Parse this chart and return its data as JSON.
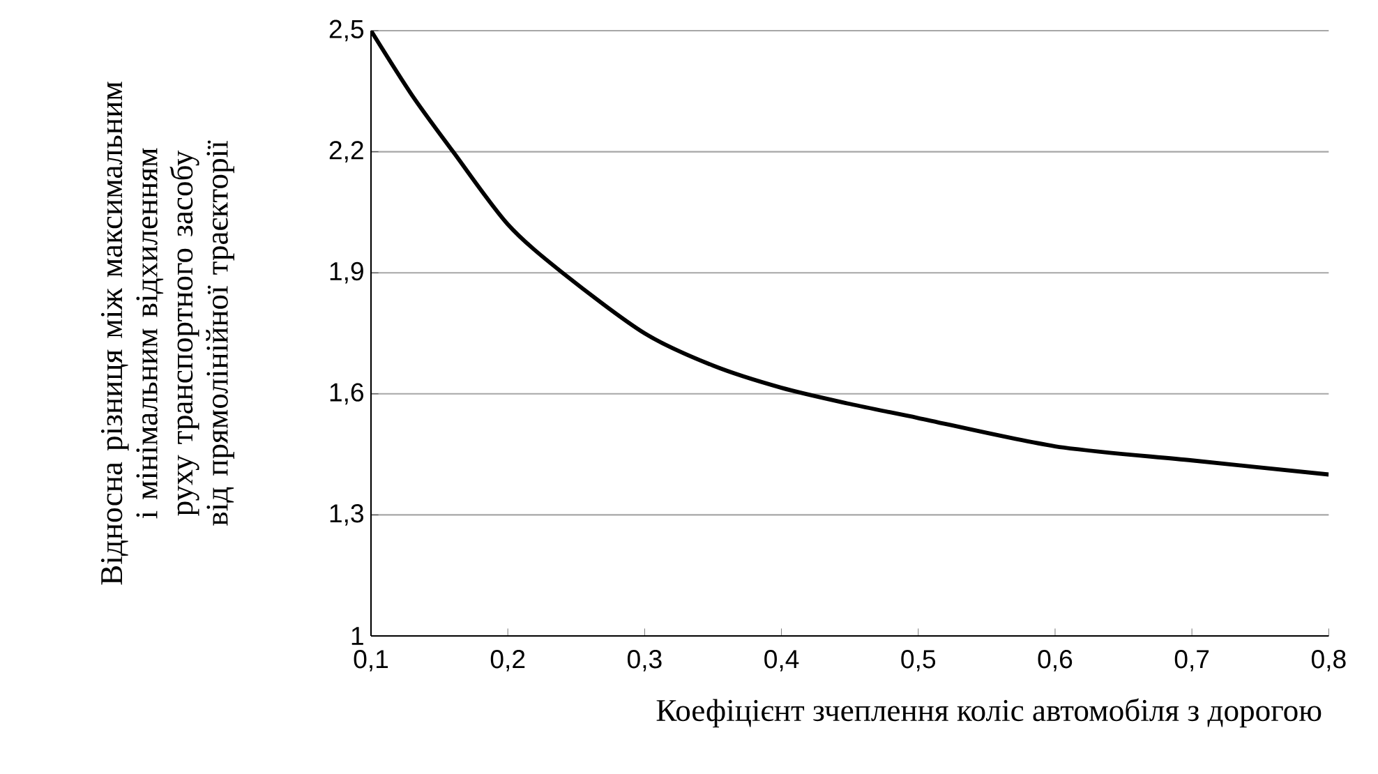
{
  "chart_data": {
    "type": "line",
    "xlabel": "Коефіцієнт зчеплення коліс автомобіля з дорогою",
    "ylabel": "Відносна різниця між максимальним і мінімальним відхиленням руху транспортного засобу від прямолінійної траєкторії",
    "x": [
      0.1,
      0.13,
      0.16,
      0.2,
      0.24,
      0.3,
      0.35,
      0.4,
      0.45,
      0.5,
      0.6,
      0.7,
      0.8
    ],
    "series": [
      {
        "color": "#000000",
        "values": [
          2.5,
          2.34,
          2.2,
          2.02,
          1.9,
          1.75,
          1.67,
          1.615,
          1.575,
          1.54,
          1.47,
          1.435,
          1.4
        ]
      }
    ],
    "xlim": [
      0.1,
      0.8
    ],
    "ylim": [
      1,
      2.5
    ],
    "xticks": [
      {
        "value": 0.1,
        "label": "0,1"
      },
      {
        "value": 0.2,
        "label": "0,2"
      },
      {
        "value": 0.3,
        "label": "0,3"
      },
      {
        "value": 0.4,
        "label": "0,4"
      },
      {
        "value": 0.5,
        "label": "0,5"
      },
      {
        "value": 0.6,
        "label": "0,6"
      },
      {
        "value": 0.7,
        "label": "0,7"
      },
      {
        "value": 0.8,
        "label": "0,8"
      }
    ],
    "yticks": [
      1,
      {
        "value": 1.3,
        "label": "1,3"
      },
      {
        "value": 1.6,
        "label": "1,6"
      },
      {
        "value": 1.9,
        "label": "1,9"
      },
      {
        "value": 2.2,
        "label": "2,2"
      },
      {
        "value": 2.5,
        "label": "2,5"
      }
    ],
    "grid": "y",
    "marker": "none",
    "line_style": "solid"
  }
}
